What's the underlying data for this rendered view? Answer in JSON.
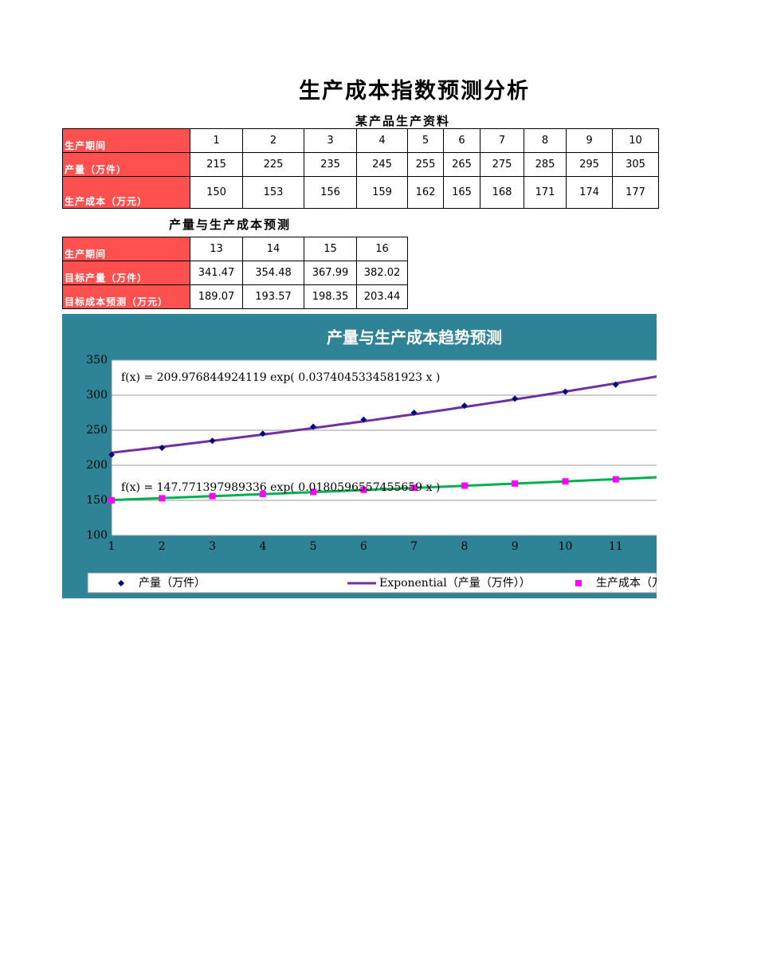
{
  "title": "生产成本指数预测分析",
  "table1": {
    "caption": "某产品生产资料",
    "rows": [
      [
        "生产期间",
        1,
        2,
        3,
        4,
        5,
        6,
        7,
        8,
        9,
        10
      ],
      [
        "产量（万件）",
        215,
        225,
        235,
        245,
        255,
        265,
        275,
        285,
        295,
        305
      ],
      [
        "生产成本（万元）",
        150,
        153,
        156,
        159,
        162,
        165,
        168,
        171,
        174,
        177
      ]
    ]
  },
  "table2": {
    "caption": "产量与生产成本预测",
    "rows": [
      [
        "生产期间",
        13,
        14,
        15,
        16
      ],
      [
        "目标产量（万件）",
        341.47,
        354.48,
        367.99,
        382.02
      ],
      [
        "目标成本预测（万元）",
        189.07,
        193.57,
        198.35,
        203.44
      ]
    ]
  },
  "chart": {
    "type": "scatter",
    "title": "产量与生产成本趋势预测",
    "x": [
      1,
      2,
      3,
      4,
      5,
      6,
      7,
      8,
      9,
      10,
      11
    ],
    "series": [
      {
        "name": "产量（万件）",
        "color": "#000080",
        "marker": "diamond",
        "values": [
          215,
          225,
          235,
          245,
          255,
          265,
          275,
          285,
          295,
          305,
          315
        ],
        "trendline": {
          "name": "Exponential（产量（万件））",
          "color": "#7030a0",
          "a": 209.976844924119,
          "b": 0.0374045334581923,
          "label": "f(x) = 209.976844924119 exp( 0.0374045334581923 x )"
        }
      },
      {
        "name": "生产成本（万元）",
        "color": "#ff00ff",
        "marker": "square",
        "values": [
          150,
          153,
          156,
          159,
          162,
          165,
          168,
          171,
          174,
          177,
          180
        ],
        "trendline": {
          "color": "#00b050",
          "a": 147.771397989336,
          "b": 0.0180596557455659,
          "label": "f(x) = 147.771397989336 exp( 0.0180596557455659 x )"
        }
      }
    ],
    "xlim": [
      1,
      12
    ],
    "xticks": [
      1,
      2,
      3,
      4,
      5,
      6,
      7,
      8,
      9,
      10,
      11
    ],
    "ylim": [
      100,
      350
    ],
    "yticks": [
      100,
      150,
      200,
      250,
      300,
      350
    ],
    "grid": true
  }
}
